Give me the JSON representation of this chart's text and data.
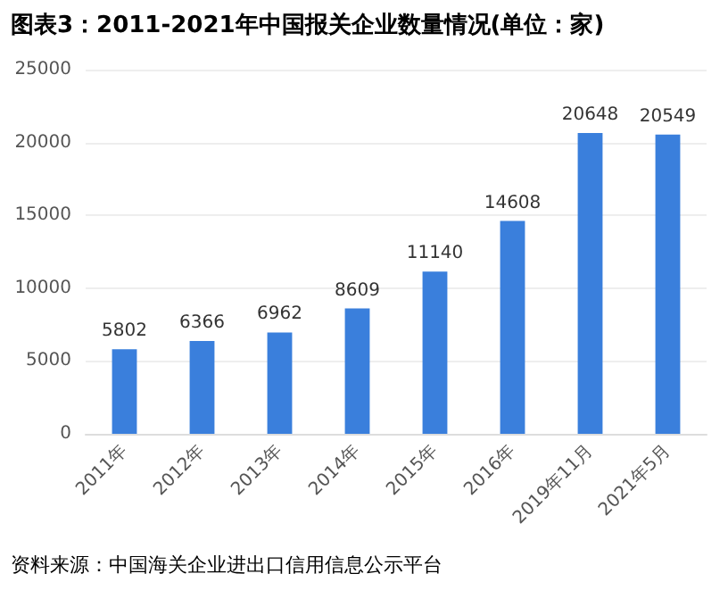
{
  "chart_data": {
    "type": "bar",
    "title": "图表3：2011-2021年中国报关企业数量情况(单位：家)",
    "categories": [
      "2011年",
      "2012年",
      "2013年",
      "2014年",
      "2015年",
      "2016年",
      "2019年11月",
      "2021年5月"
    ],
    "values": [
      5802,
      6366,
      6962,
      8609,
      11140,
      14608,
      20648,
      20549
    ],
    "color": "#3a7fdc",
    "ylim": [
      0,
      25000
    ],
    "yticks": [
      0,
      5000,
      10000,
      15000,
      20000,
      25000
    ],
    "grid": "y",
    "data_labels": true,
    "annotations": [
      "资料来源：中国海关企业进出口信用信息公示平台"
    ]
  }
}
